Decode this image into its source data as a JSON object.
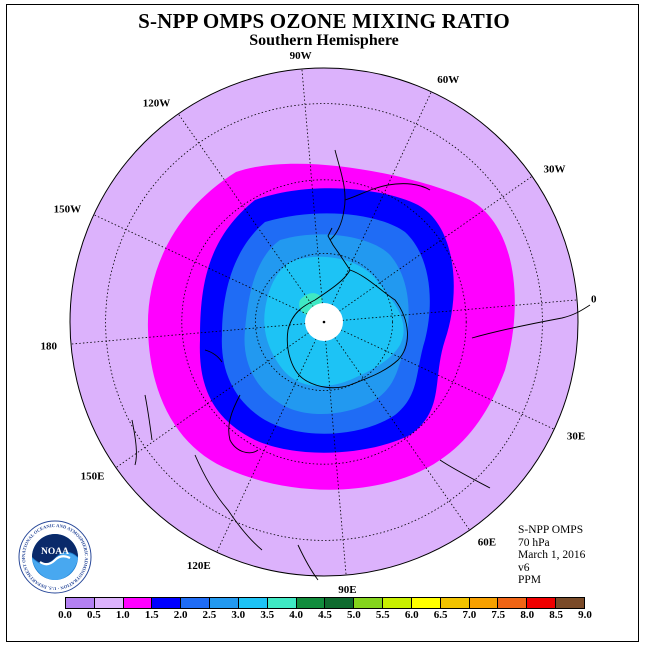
{
  "header": {
    "title": "S-NPP OMPS OZONE MIXING RATIO",
    "subtitle": "Southern Hemisphere"
  },
  "map": {
    "projection": "south polar stereographic",
    "longitude_labels": [
      "90W",
      "60W",
      "30W",
      "0",
      "30E",
      "60E",
      "90E",
      "120E",
      "150E",
      "180",
      "150W",
      "120W"
    ],
    "colors": {
      "background_field": "#dcb2fc",
      "band_1_0_to_1_5": "#ff00ff",
      "band_1_5_to_2_0": "#0000ff",
      "band_2_0_to_2_5": "#1f6cf5",
      "band_2_5_to_3_0": "#2299f0",
      "band_3_0_to_3_5": "#1dc3f5",
      "band_3_5_to_4_0": "#3fe9c4",
      "missing_center": "#ffffff"
    }
  },
  "info": {
    "instrument": "S-NPP OMPS",
    "level": "70 hPa",
    "date": "March 1, 2016",
    "version": "v6",
    "units": "PPM"
  },
  "colorbar": {
    "labels": [
      "0.0",
      "0.5",
      "1.0",
      "1.5",
      "2.0",
      "2.5",
      "3.0",
      "3.5",
      "4.0",
      "4.5",
      "5.0",
      "5.5",
      "6.0",
      "6.5",
      "7.0",
      "7.5",
      "8.0",
      "8.5",
      "9.0"
    ],
    "colors": [
      "#b380f2",
      "#dcb2fc",
      "#ff00ff",
      "#0000ff",
      "#1f6cf5",
      "#2299f0",
      "#1dc3f5",
      "#3fe9c4",
      "#118c3c",
      "#0e6b2e",
      "#84d41c",
      "#c8f000",
      "#ffff00",
      "#f2c300",
      "#f7a000",
      "#f06414",
      "#f00000",
      "#7a4a28"
    ]
  },
  "logo": {
    "text": "NOAA",
    "ring_text": "NATIONAL OCEANIC AND ATMOSPHERIC ADMINISTRATION · U.S. DEPARTMENT OF COMMERCE ·"
  }
}
